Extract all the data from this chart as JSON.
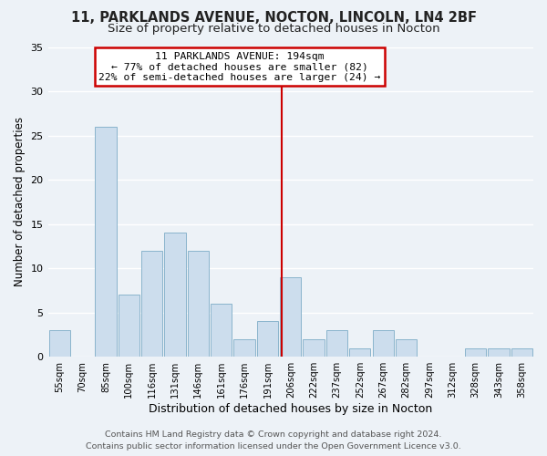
{
  "title": "11, PARKLANDS AVENUE, NOCTON, LINCOLN, LN4 2BF",
  "subtitle": "Size of property relative to detached houses in Nocton",
  "xlabel": "Distribution of detached houses by size in Nocton",
  "ylabel": "Number of detached properties",
  "bin_labels": [
    "55sqm",
    "70sqm",
    "85sqm",
    "100sqm",
    "116sqm",
    "131sqm",
    "146sqm",
    "161sqm",
    "176sqm",
    "191sqm",
    "206sqm",
    "222sqm",
    "237sqm",
    "252sqm",
    "267sqm",
    "282sqm",
    "297sqm",
    "312sqm",
    "328sqm",
    "343sqm",
    "358sqm"
  ],
  "bar_values": [
    3,
    0,
    26,
    7,
    12,
    14,
    12,
    6,
    2,
    4,
    9,
    2,
    3,
    1,
    3,
    2,
    0,
    0,
    1,
    1,
    1
  ],
  "bar_color": "#ccdded",
  "bar_edge_color": "#8ab4cc",
  "ylim": [
    0,
    35
  ],
  "yticks": [
    0,
    5,
    10,
    15,
    20,
    25,
    30,
    35
  ],
  "vline_x_index": 9.6,
  "vline_color": "#cc0000",
  "annotation_title": "11 PARKLANDS AVENUE: 194sqm",
  "annotation_line1": "← 77% of detached houses are smaller (82)",
  "annotation_line2": "22% of semi-detached houses are larger (24) →",
  "annotation_box_color": "#ffffff",
  "annotation_box_edge": "#cc0000",
  "footer_line1": "Contains HM Land Registry data © Crown copyright and database right 2024.",
  "footer_line2": "Contains public sector information licensed under the Open Government Licence v3.0.",
  "background_color": "#edf2f7",
  "grid_color": "#ffffff",
  "title_fontsize": 10.5,
  "subtitle_fontsize": 9.5,
  "xlabel_fontsize": 9,
  "ylabel_fontsize": 8.5,
  "footer_fontsize": 6.8
}
